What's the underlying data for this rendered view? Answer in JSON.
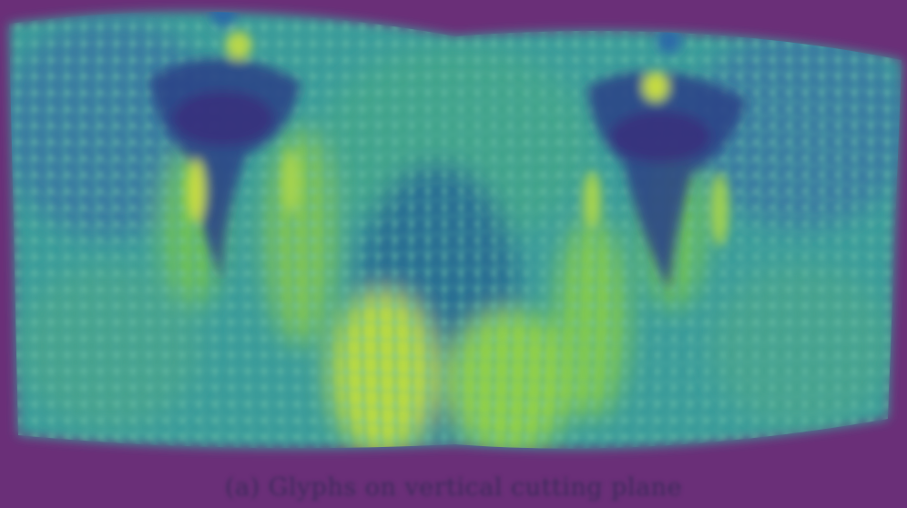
{
  "caption": "(a) Glyphs on vertical cutting plane",
  "colors": {
    "background": "#6a2f78",
    "colormap": [
      "#440154",
      "#3b528b",
      "#21908d",
      "#5ec962",
      "#fde725"
    ],
    "mesh": "#4aa8a0"
  },
  "description_elements": [
    "vertical-cutting-plane",
    "glyph-mesh",
    "vortex-left",
    "vortex-right",
    "colormap-viridis"
  ]
}
